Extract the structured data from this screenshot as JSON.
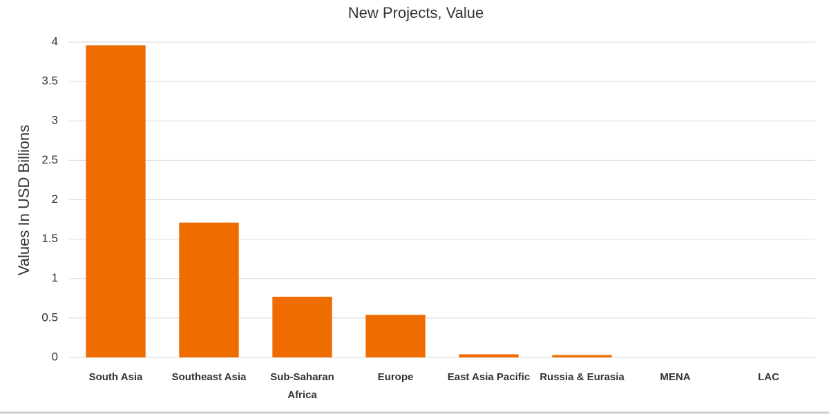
{
  "chart_data": {
    "type": "bar",
    "title": "New Projects, Value",
    "y_label": "Values In USD Billions",
    "categories": [
      "South Asia",
      "Southeast Asia",
      "Sub-Saharan Africa",
      "Europe",
      "East Asia Pacific",
      "Russia & Eurasia",
      "MENA",
      "LAC"
    ],
    "values": [
      3.96,
      1.71,
      0.77,
      0.54,
      0.04,
      0.03,
      0,
      0
    ],
    "color": "#ef6c00",
    "ylim": [
      0,
      4
    ],
    "yticks": [
      0,
      0.5,
      1,
      1.5,
      2,
      2.5,
      3,
      3.5,
      4
    ],
    "grid": true
  }
}
